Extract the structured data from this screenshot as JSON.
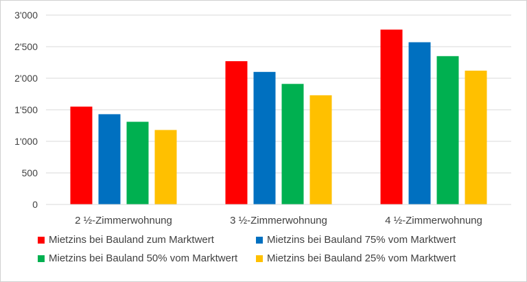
{
  "chart_data": {
    "type": "bar",
    "title": "",
    "xlabel": "",
    "ylabel": "",
    "categories": [
      "2 ½-Zimmerwohnung",
      "3 ½-Zimmerwohnung",
      "4 ½-Zimmerwohnung"
    ],
    "series": [
      {
        "name": "Mietzins bei Bauland zum Marktwert",
        "color": "#ff0000",
        "values": [
          1550,
          2270,
          2770
        ]
      },
      {
        "name": "Mietzins bei Bauland 75% vom Marktwert",
        "color": "#0070c0",
        "values": [
          1430,
          2100,
          2570
        ]
      },
      {
        "name": "Mietzins bei Bauland 50% vom Marktwert",
        "color": "#00b050",
        "values": [
          1310,
          1910,
          2350
        ]
      },
      {
        "name": "Mietzins bei Bauland 25% vom Marktwert",
        "color": "#ffc000",
        "values": [
          1180,
          1730,
          2120
        ]
      }
    ],
    "ylim": [
      0,
      3000
    ],
    "yticks": [
      0,
      500,
      1000,
      1500,
      2000,
      2500,
      3000
    ],
    "ytick_labels": [
      "0",
      "500",
      "1'000",
      "1'500",
      "2'000",
      "2'500",
      "3'000"
    ],
    "grid": true,
    "legend": "bottom"
  }
}
